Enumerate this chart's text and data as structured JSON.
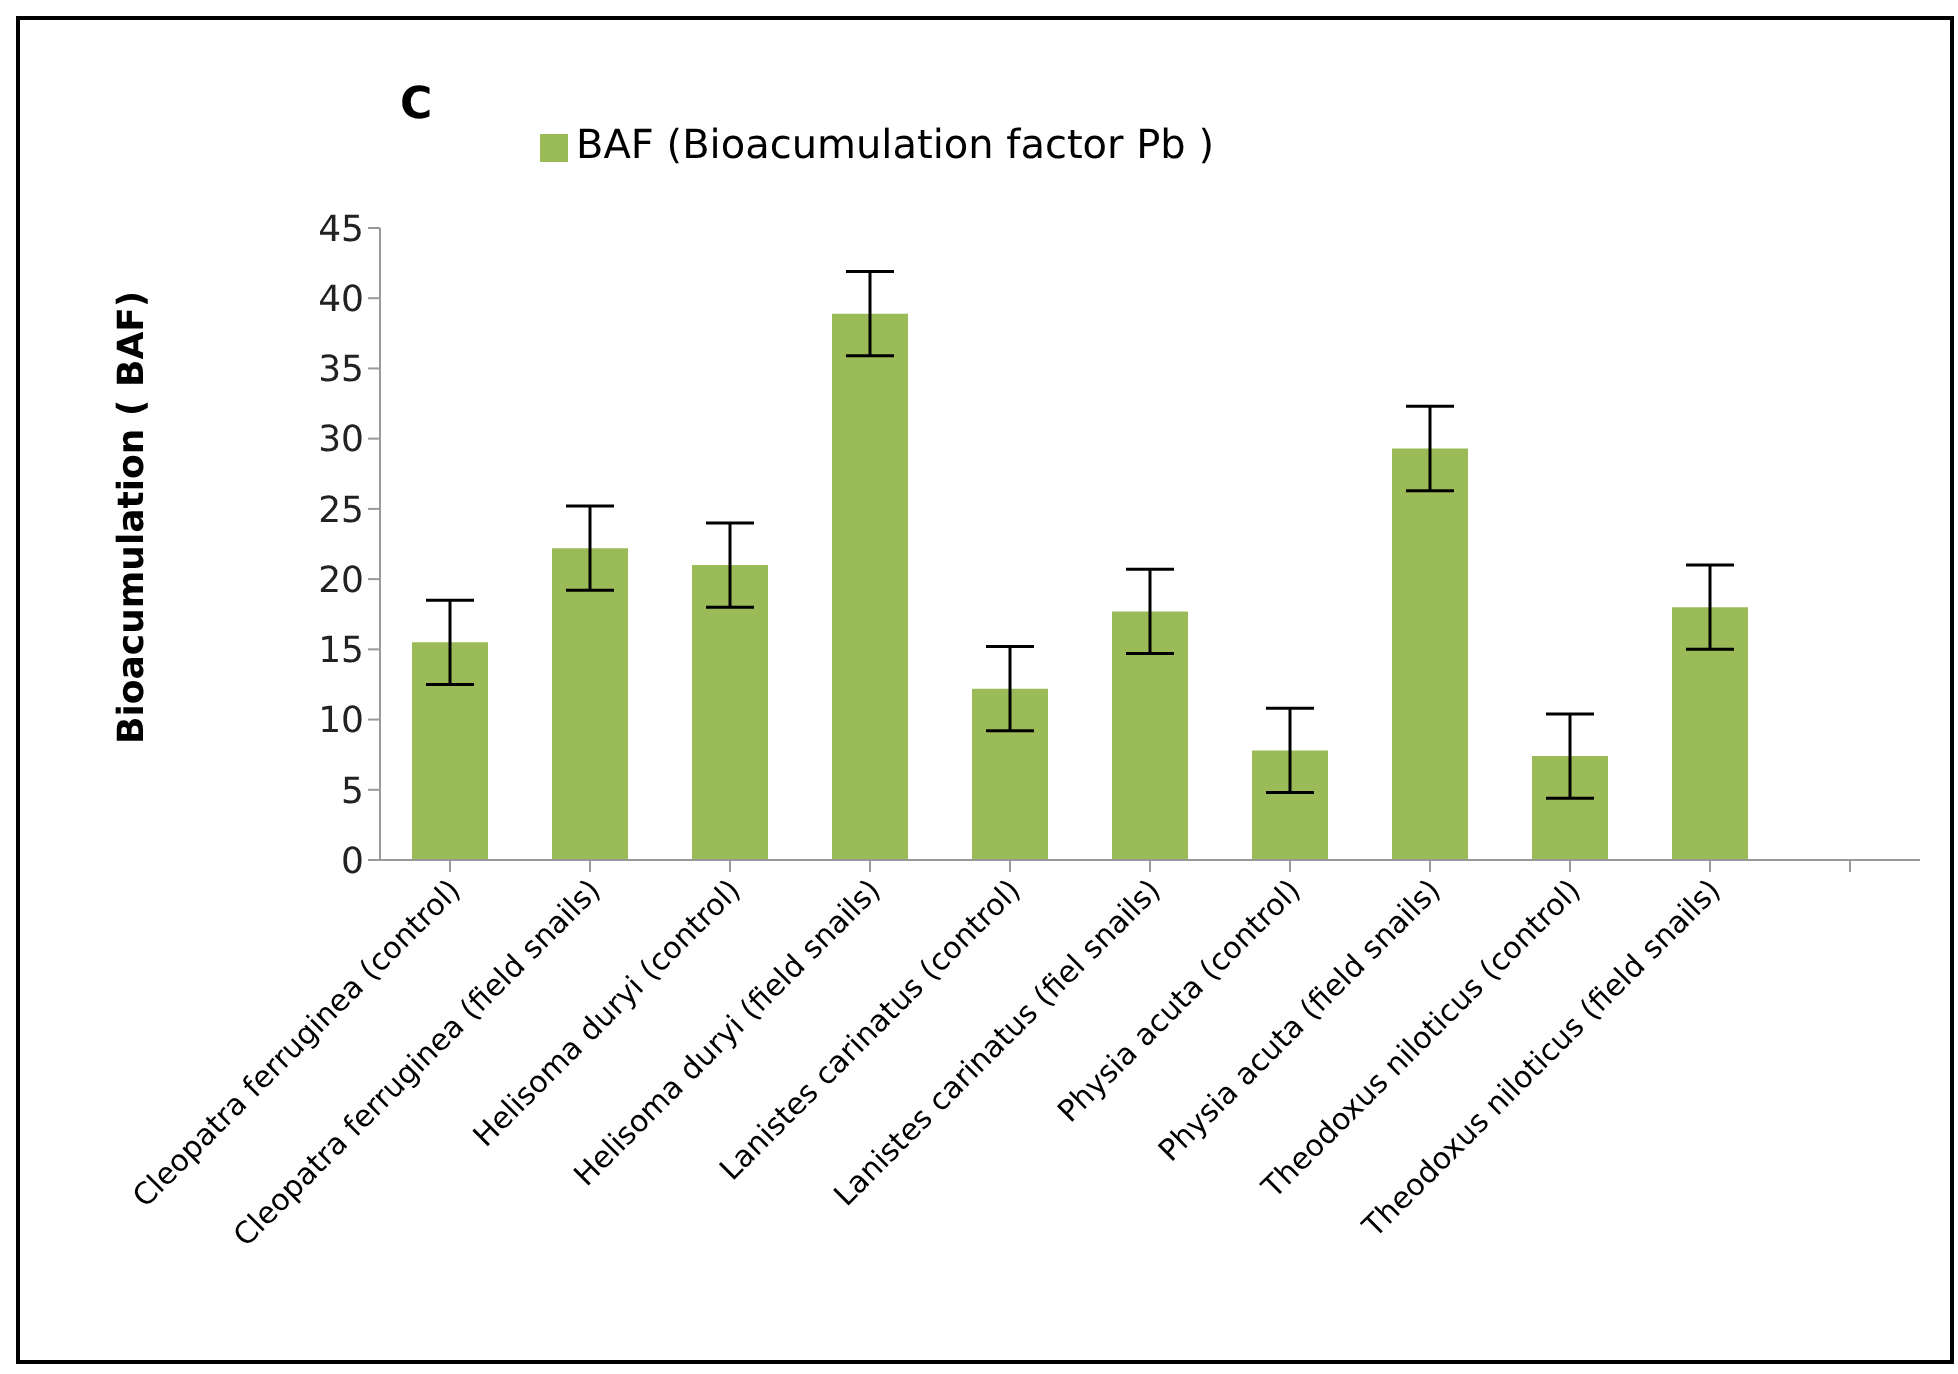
{
  "chart_data": {
    "type": "bar",
    "title": "C",
    "ylabel": "Bioacumulation ( BAF)",
    "categories": [
      "Cleopatra ferruginea (control)",
      "Cleopatra ferruginea (field snails)",
      "Helisoma duryi (control)",
      "Helisoma duryi (field snails)",
      "Lanistes carinatus (control)",
      "Lanistes carinatus (fiel snails)",
      "Physia acuta (control)",
      "Physia acuta (field snails)",
      "Theodoxus niloticus (control)",
      "Theodoxus niloticus (field snails)",
      null
    ],
    "series": [
      {
        "name": "BAF (Bioacumulation factor Pb )",
        "color": "#9bbb59",
        "values": [
          15.5,
          22.2,
          21.0,
          38.9,
          12.2,
          17.7,
          7.8,
          29.3,
          7.4,
          18.0,
          null
        ],
        "errors": [
          3,
          3,
          3,
          3,
          3,
          3,
          3,
          3,
          3,
          3,
          null
        ]
      }
    ],
    "ylim": [
      0,
      45
    ],
    "yticks": [
      0,
      5,
      10,
      15,
      20,
      25,
      30,
      35,
      40,
      45
    ],
    "grid": false,
    "legend": "top"
  }
}
